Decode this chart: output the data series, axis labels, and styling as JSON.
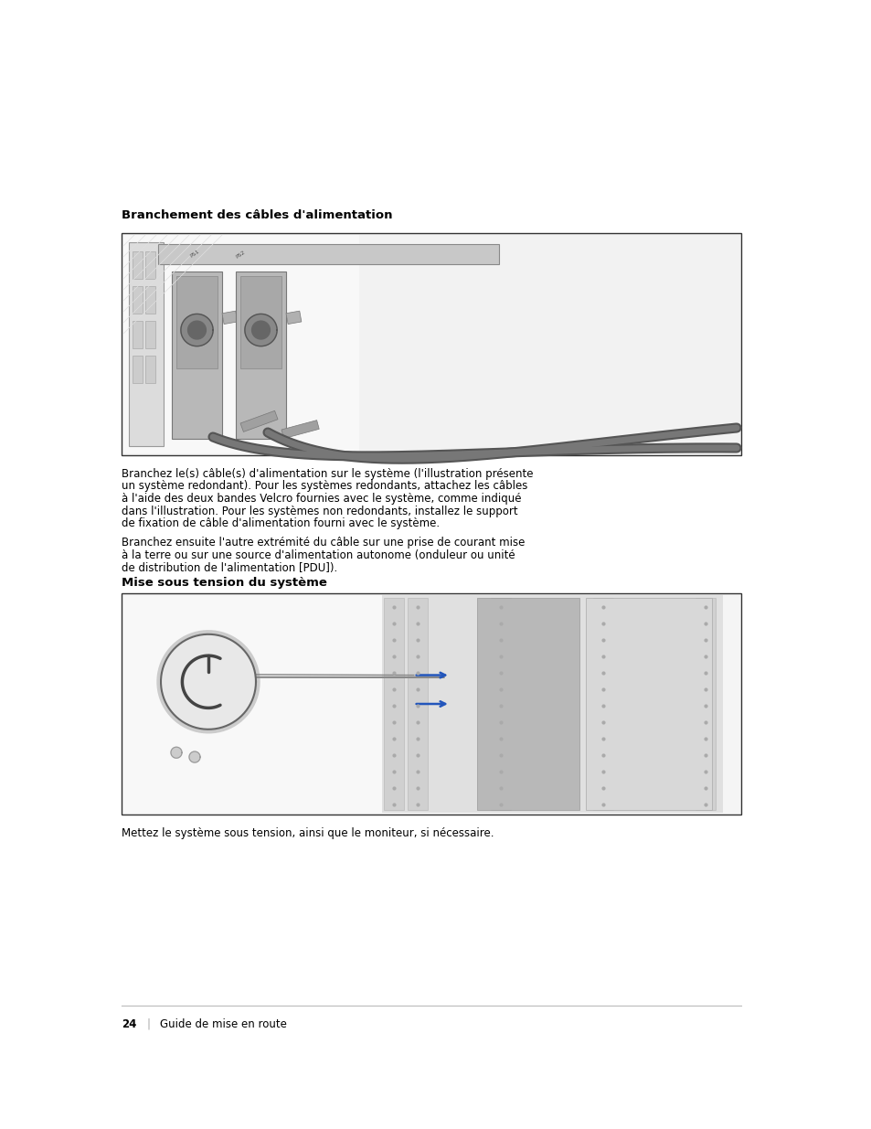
{
  "bg_color": "#ffffff",
  "page_width": 9.54,
  "page_height": 12.35,
  "dpi": 100,
  "section1_title": "Branchement des câbles d'alimentation",
  "section1_title_fontsize": 9.5,
  "image1_bg": "#f2f2f2",
  "image1_border": "#333333",
  "para1_text": "Branchez le(s) câble(s) d'alimentation sur le système (l'illustration présente\nun système redondant). Pour les systèmes redondants, attachez les câbles\nà l'aide des deux bandes Velcro fournies avec le système, comme indiqué\ndans l'illustration. Pour les systèmes non redondants, installez le support\nde fixation de câble d'alimentation fourni avec le système.",
  "para1_fontsize": 8.5,
  "para2_text": "Branchez ensuite l'autre extrémité du câble sur une prise de courant mise\nà la terre ou sur une source d'alimentation autonome (onduleur ou unité\nde distribution de l'alimentation [PDU]).",
  "para2_fontsize": 8.5,
  "section2_title": "Mise sous tension du système",
  "section2_title_fontsize": 9.5,
  "image2_bg": "#f5f5f5",
  "image2_border": "#333333",
  "para3_text": "Mettez le système sous tension, ainsi que le moniteur, si nécessaire.",
  "para3_fontsize": 8.5,
  "footer_page_num": "24",
  "footer_sep": "|",
  "footer_text": "Guide de mise en route",
  "footer_fontsize": 8.5,
  "text_color": "#000000",
  "gray_light": "#d8d8d8",
  "gray_mid": "#b0b0b0",
  "gray_dark": "#888888",
  "blue_arrow": "#2255bb"
}
